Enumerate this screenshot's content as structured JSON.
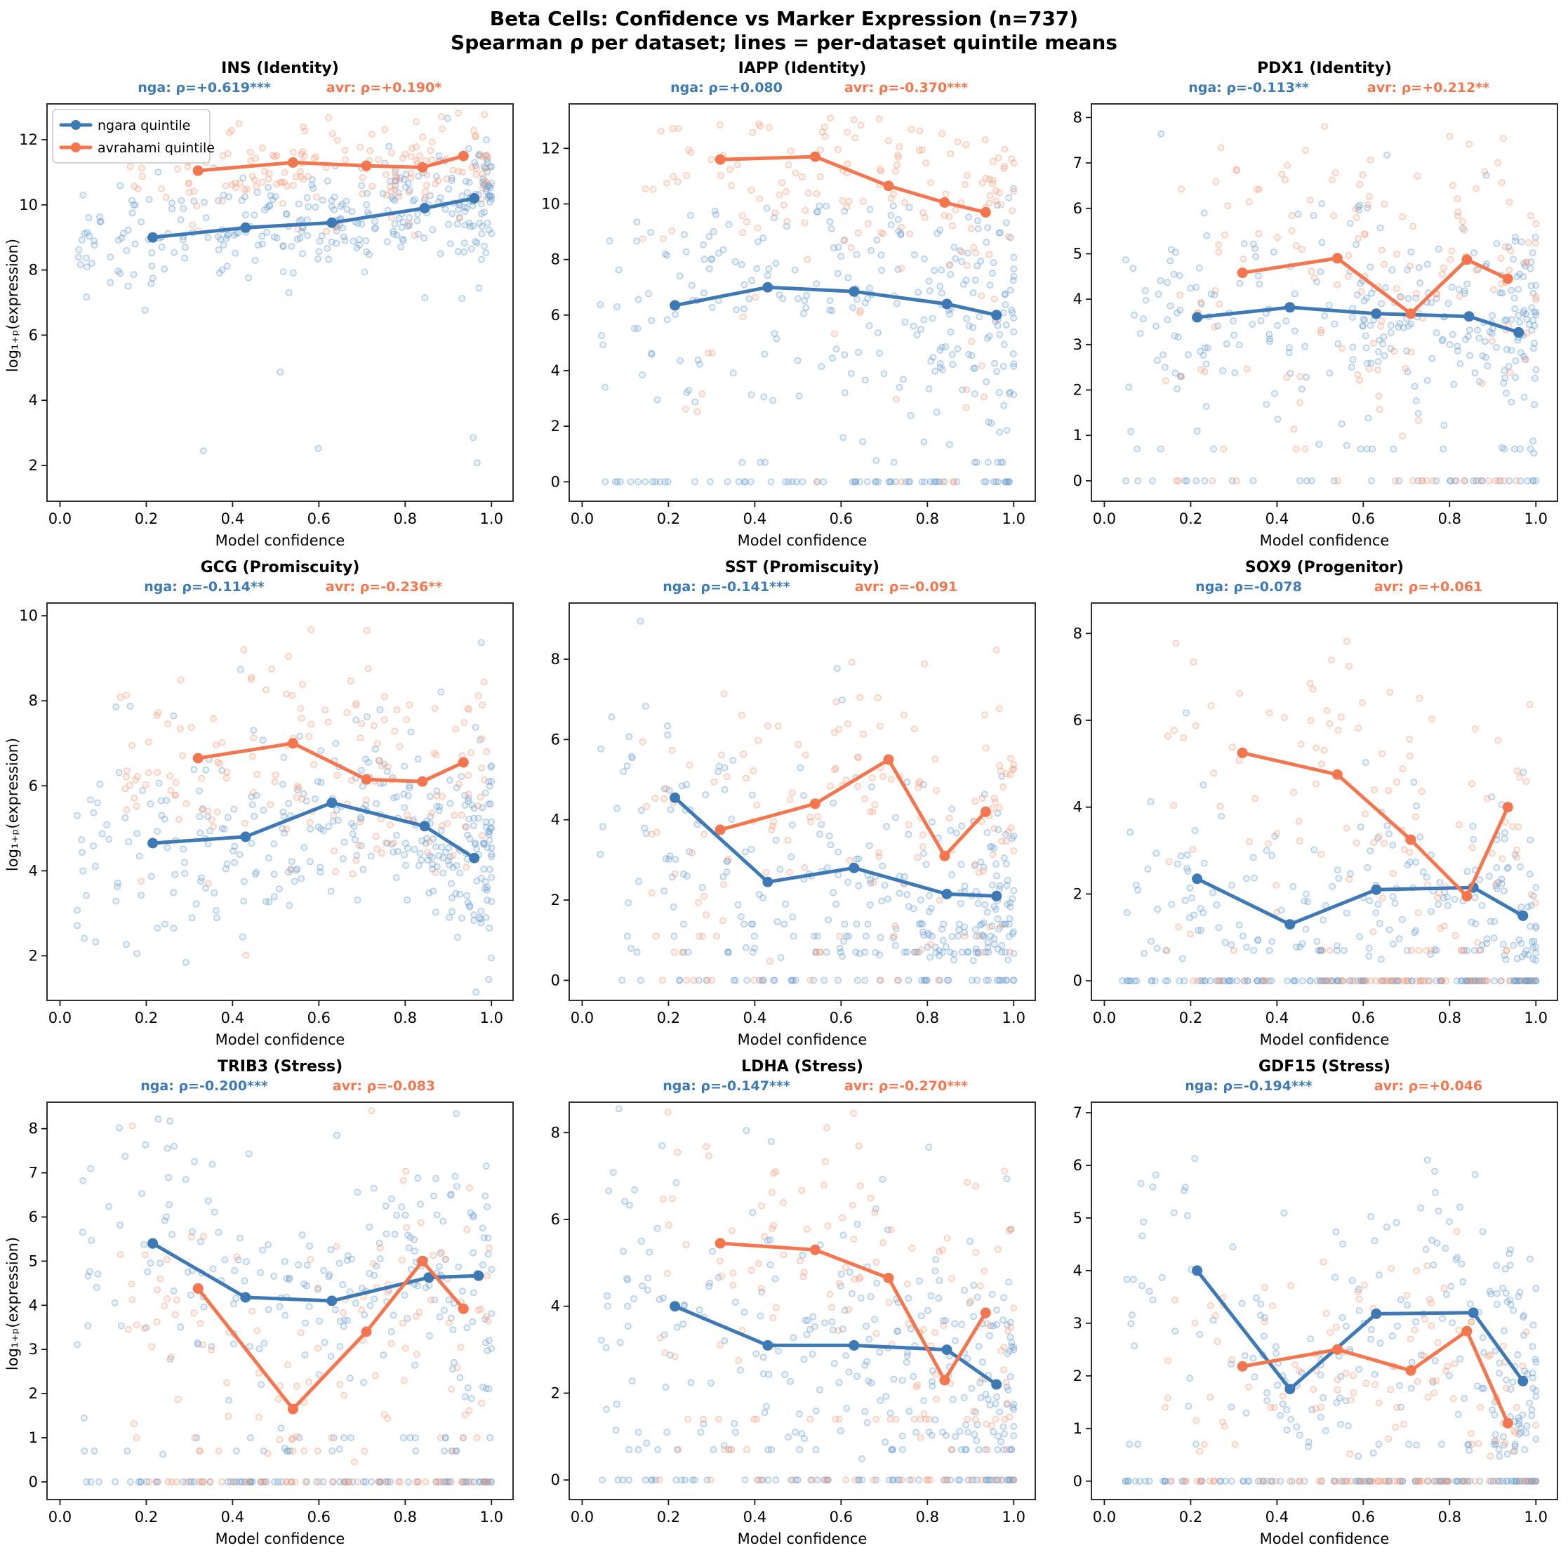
{
  "header": {
    "title": "Beta Cells: Confidence vs Marker Expression (n=737)",
    "subtitle": "Spearman ρ per dataset; lines = per-dataset quintile means"
  },
  "colors": {
    "ngara_line": "#3d79b4",
    "avrahami_line": "#f4764e",
    "ngara_scatter": "#6e9fce",
    "avrahami_scatter": "#f59b77",
    "spine": "#1a1a1a"
  },
  "legend": {
    "items": [
      {
        "label": "ngara quintile",
        "color_key": "ngara_line"
      },
      {
        "label": "avrahami quintile",
        "color_key": "avrahami_line"
      }
    ]
  },
  "axes": {
    "xlabel": "Model confidence",
    "ylabel": "log₁₊ₚ(expression)",
    "x_ticks": [
      0.0,
      0.2,
      0.4,
      0.6,
      0.8,
      1.0
    ],
    "xlim": [
      -0.03,
      1.05
    ]
  },
  "chart_data": [
    {
      "type": "scatter",
      "title": "INS (Identity)",
      "annotations": {
        "nga": "nga: ρ=+0.619***",
        "avr": "avr: ρ=+0.190*"
      },
      "y_ticks": [
        2,
        4,
        6,
        8,
        10,
        12
      ],
      "ylim": [
        0.9,
        13.1
      ],
      "series": [
        {
          "name": "ngara quintile",
          "x": [
            0.215,
            0.43,
            0.63,
            0.845,
            0.96
          ],
          "y": [
            9.0,
            9.3,
            9.45,
            9.9,
            10.2
          ]
        },
        {
          "name": "avrahami quintile",
          "x": [
            0.32,
            0.54,
            0.71,
            0.84,
            0.935
          ],
          "y": [
            11.05,
            11.3,
            11.2,
            11.15,
            11.5
          ]
        }
      ],
      "scatter": {
        "ngara": {
          "n": 330,
          "sd": 0.8,
          "zero_frac": 0,
          "bands": [],
          "tail": [
            1.3,
            7.5,
            0.035
          ]
        },
        "avrahami": {
          "n": 160,
          "sd": 0.75,
          "zero_frac": 0,
          "bands": [],
          "tail": [
            9.0,
            10.5,
            0.05
          ]
        }
      }
    },
    {
      "type": "scatter",
      "title": "IAPP (Identity)",
      "annotations": {
        "nga": "nga: ρ=+0.080",
        "avr": "avr: ρ=-0.370***"
      },
      "y_ticks": [
        0,
        2,
        4,
        6,
        8,
        10,
        12
      ],
      "ylim": [
        -0.7,
        13.6
      ],
      "series": [
        {
          "name": "ngara quintile",
          "x": [
            0.215,
            0.43,
            0.63,
            0.845,
            0.96
          ],
          "y": [
            6.35,
            7.0,
            6.85,
            6.4,
            6.0
          ]
        },
        {
          "name": "avrahami quintile",
          "x": [
            0.32,
            0.54,
            0.71,
            0.84,
            0.935
          ],
          "y": [
            11.6,
            11.7,
            10.65,
            10.05,
            9.7
          ]
        }
      ],
      "scatter": {
        "ngara": {
          "n": 330,
          "sd": 2.3,
          "zero_frac": 0.16,
          "bands": [
            [
              0.7,
              0.04
            ]
          ],
          "ymax": 10.8
        },
        "avrahami": {
          "n": 160,
          "sd": 1.7,
          "zero_frac": 0.04,
          "bands": [],
          "tail": [
            2.5,
            6.5,
            0.12
          ],
          "ymax": 13.2
        }
      }
    },
    {
      "type": "scatter",
      "title": "PDX1 (Identity)",
      "annotations": {
        "nga": "nga: ρ=-0.113**",
        "avr": "avr: ρ=+0.212**"
      },
      "y_ticks": [
        0,
        1,
        2,
        3,
        4,
        5,
        6,
        7,
        8
      ],
      "ylim": [
        -0.45,
        8.3
      ],
      "series": [
        {
          "name": "ngara quintile",
          "x": [
            0.215,
            0.43,
            0.63,
            0.845,
            0.96
          ],
          "y": [
            3.6,
            3.82,
            3.68,
            3.62,
            3.27
          ]
        },
        {
          "name": "avrahami quintile",
          "x": [
            0.32,
            0.54,
            0.71,
            0.84,
            0.935
          ],
          "y": [
            4.58,
            4.9,
            3.68,
            4.87,
            4.45
          ]
        }
      ],
      "scatter": {
        "ngara": {
          "n": 330,
          "sd": 1.15,
          "zero_frac": 0.09,
          "bands": [
            [
              0.7,
              0.03
            ]
          ]
        },
        "avrahami": {
          "n": 160,
          "sd": 1.5,
          "zero_frac": 0.14,
          "bands": [
            [
              0.7,
              0.03
            ]
          ]
        }
      }
    },
    {
      "type": "scatter",
      "title": "GCG (Promiscuity)",
      "annotations": {
        "nga": "nga: ρ=-0.114**",
        "avr": "avr: ρ=-0.236**"
      },
      "y_ticks": [
        2,
        4,
        6,
        8,
        10
      ],
      "ylim": [
        0.95,
        10.3
      ],
      "series": [
        {
          "name": "ngara quintile",
          "x": [
            0.215,
            0.43,
            0.63,
            0.845,
            0.96
          ],
          "y": [
            4.65,
            4.8,
            5.6,
            5.05,
            4.3
          ]
        },
        {
          "name": "avrahami quintile",
          "x": [
            0.32,
            0.54,
            0.71,
            0.84,
            0.935
          ],
          "y": [
            6.65,
            7.0,
            6.15,
            6.1,
            6.55
          ]
        }
      ],
      "scatter": {
        "ngara": {
          "n": 330,
          "sd": 1.15,
          "zero_frac": 0,
          "bands": [],
          "tail": [
            7.6,
            9.6,
            0.02
          ]
        },
        "avrahami": {
          "n": 160,
          "sd": 1.35,
          "zero_frac": 0,
          "bands": []
        }
      }
    },
    {
      "type": "scatter",
      "title": "SST (Promiscuity)",
      "annotations": {
        "nga": "nga: ρ=-0.141***",
        "avr": "avr: ρ=-0.091"
      },
      "y_ticks": [
        0,
        2,
        4,
        6,
        8
      ],
      "ylim": [
        -0.5,
        9.4
      ],
      "series": [
        {
          "name": "ngara quintile",
          "x": [
            0.215,
            0.43,
            0.63,
            0.845,
            0.96
          ],
          "y": [
            4.55,
            2.45,
            2.8,
            2.15,
            2.1
          ]
        },
        {
          "name": "avrahami quintile",
          "x": [
            0.32,
            0.54,
            0.71,
            0.84,
            0.935
          ],
          "y": [
            3.75,
            4.4,
            5.5,
            3.1,
            4.2
          ]
        }
      ],
      "scatter": {
        "ngara": {
          "n": 330,
          "sd": 1.5,
          "zero_frac": 0.13,
          "bands": [
            [
              0.7,
              0.07
            ],
            [
              1.1,
              0.05
            ],
            [
              1.4,
              0.04
            ]
          ]
        },
        "avrahami": {
          "n": 160,
          "sd": 1.6,
          "zero_frac": 0.05,
          "bands": [
            [
              0.7,
              0.04
            ],
            [
              1.1,
              0.03
            ]
          ]
        }
      }
    },
    {
      "type": "scatter",
      "title": "SOX9 (Progenitor)",
      "annotations": {
        "nga": "nga: ρ=-0.078",
        "avr": "avr: ρ=+0.061"
      },
      "y_ticks": [
        0,
        2,
        4,
        6,
        8
      ],
      "ylim": [
        -0.45,
        8.7
      ],
      "series": [
        {
          "name": "ngara quintile",
          "x": [
            0.215,
            0.43,
            0.63,
            0.855,
            0.97
          ],
          "y": [
            2.35,
            1.3,
            2.1,
            2.15,
            1.5
          ]
        },
        {
          "name": "avrahami quintile",
          "x": [
            0.32,
            0.54,
            0.71,
            0.84,
            0.935
          ],
          "y": [
            5.25,
            4.75,
            3.25,
            1.95,
            4.0
          ]
        }
      ],
      "scatter": {
        "ngara": {
          "n": 330,
          "sd": 1.3,
          "zero_frac": 0.42,
          "bands": [
            [
              0.7,
              0.05
            ]
          ],
          "ymax": 6.6
        },
        "avrahami": {
          "n": 160,
          "sd": 1.8,
          "zero_frac": 0.3,
          "bands": [
            [
              0.7,
              0.06
            ]
          ]
        }
      }
    },
    {
      "type": "scatter",
      "title": "TRIB3 (Stress)",
      "annotations": {
        "nga": "nga: ρ=-0.200***",
        "avr": "avr: ρ=-0.083"
      },
      "y_ticks": [
        0,
        1,
        2,
        3,
        4,
        5,
        6,
        7,
        8
      ],
      "ylim": [
        -0.4,
        8.6
      ],
      "series": [
        {
          "name": "ngara quintile",
          "x": [
            0.215,
            0.43,
            0.63,
            0.855,
            0.97
          ],
          "y": [
            5.4,
            4.18,
            4.1,
            4.63,
            4.67
          ]
        },
        {
          "name": "avrahami quintile",
          "x": [
            0.32,
            0.54,
            0.71,
            0.84,
            0.935
          ],
          "y": [
            4.38,
            1.65,
            3.4,
            5.0,
            3.92
          ]
        }
      ],
      "scatter": {
        "ngara": {
          "n": 330,
          "sd": 1.5,
          "zero_frac": 0.22,
          "bands": [
            [
              0.7,
              0.05
            ],
            [
              1.0,
              0.03
            ]
          ]
        },
        "avrahami": {
          "n": 160,
          "sd": 1.7,
          "zero_frac": 0.26,
          "bands": [
            [
              0.7,
              0.06
            ],
            [
              1.0,
              0.03
            ]
          ]
        }
      }
    },
    {
      "type": "scatter",
      "title": "LDHA (Stress)",
      "annotations": {
        "nga": "nga: ρ=-0.147***",
        "avr": "avr: ρ=-0.270***"
      },
      "y_ticks": [
        0,
        2,
        4,
        6,
        8
      ],
      "ylim": [
        -0.45,
        8.7
      ],
      "series": [
        {
          "name": "ngara quintile",
          "x": [
            0.215,
            0.43,
            0.63,
            0.845,
            0.96
          ],
          "y": [
            4.0,
            3.1,
            3.1,
            3.0,
            2.2
          ]
        },
        {
          "name": "avrahami quintile",
          "x": [
            0.32,
            0.54,
            0.71,
            0.84,
            0.935
          ],
          "y": [
            5.45,
            5.3,
            4.65,
            2.3,
            3.85
          ]
        }
      ],
      "scatter": {
        "ngara": {
          "n": 330,
          "sd": 1.5,
          "zero_frac": 0.2,
          "bands": [
            [
              0.7,
              0.05
            ],
            [
              1.1,
              0.04
            ]
          ]
        },
        "avrahami": {
          "n": 160,
          "sd": 1.6,
          "zero_frac": 0.16,
          "bands": [
            [
              0.7,
              0.05
            ],
            [
              1.4,
              0.04
            ]
          ]
        }
      }
    },
    {
      "type": "scatter",
      "title": "GDF15 (Stress)",
      "annotations": {
        "nga": "nga: ρ=-0.194***",
        "avr": "avr: ρ=+0.046"
      },
      "y_ticks": [
        0,
        1,
        2,
        3,
        4,
        5,
        6,
        7
      ],
      "ylim": [
        -0.35,
        7.2
      ],
      "series": [
        {
          "name": "ngara quintile",
          "x": [
            0.215,
            0.43,
            0.63,
            0.855,
            0.97
          ],
          "y": [
            4.0,
            1.75,
            3.18,
            3.2,
            1.9
          ]
        },
        {
          "name": "avrahami quintile",
          "x": [
            0.32,
            0.54,
            0.71,
            0.84,
            0.935
          ],
          "y": [
            2.18,
            2.5,
            2.1,
            2.85,
            1.1
          ]
        }
      ],
      "scatter": {
        "ngara": {
          "n": 330,
          "sd": 1.4,
          "zero_frac": 0.28,
          "bands": [
            [
              0.7,
              0.05
            ]
          ],
          "ymax": 6.65
        },
        "avrahami": {
          "n": 160,
          "sd": 1.1,
          "zero_frac": 0.33,
          "bands": [
            [
              0.7,
              0.05
            ],
            [
              1.4,
              0.03
            ]
          ]
        }
      }
    }
  ],
  "render": {
    "seed": 7,
    "xdist": {
      "ngara": {
        "xmin": 0.04,
        "xmax": 1.0,
        "pow": 1.6
      },
      "avrahami": {
        "xmin": 0.14,
        "xmax": 1.0,
        "pow": 1.25
      }
    }
  }
}
